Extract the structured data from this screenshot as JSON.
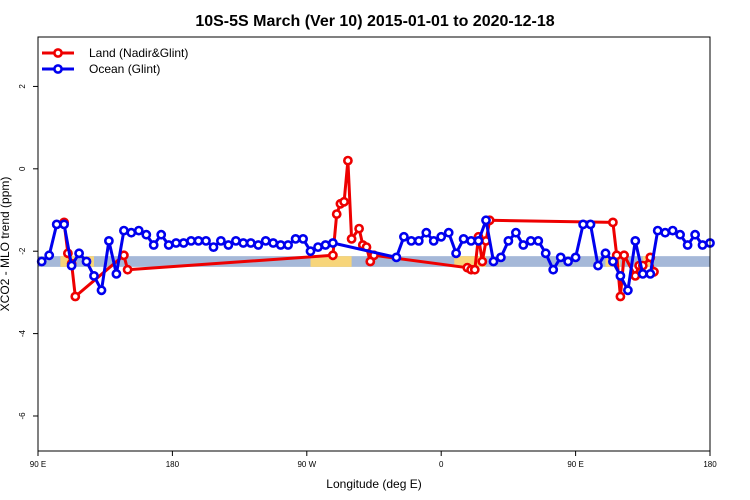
{
  "chart_data": {
    "type": "line",
    "title": "10S-5S March (Ver 10)   2015-01-01 to 2020-12-18",
    "xlabel": "Longitude (deg E)",
    "ylabel": "XCO2 - MLO trend (ppm)",
    "xlim": [
      90,
      450
    ],
    "ylim": [
      -6.85,
      3.2
    ],
    "x_ticks": [
      {
        "value": 90,
        "label": "90 E"
      },
      {
        "value": 162,
        "label": "180"
      },
      {
        "value": 234,
        "label": "90 W"
      },
      {
        "value": 306,
        "label": "0"
      },
      {
        "value": 378,
        "label": "90 E"
      },
      {
        "value": 450,
        "label": "180"
      }
    ],
    "y_ticks": [
      {
        "value": 2,
        "label": "2"
      },
      {
        "value": 0,
        "label": "0"
      },
      {
        "value": -2,
        "label": "-2"
      },
      {
        "value": -4,
        "label": "-4"
      },
      {
        "value": -6,
        "label": "-6"
      }
    ],
    "grid": false,
    "legend": "top-left",
    "band": {
      "y": -2.25,
      "half_width": 0.13,
      "color": "#a5b8d8",
      "land_color": "#f7d57a"
    },
    "land_segments": [
      [
        102,
        110
      ],
      [
        116,
        120
      ],
      [
        236,
        258
      ],
      [
        313,
        330
      ],
      [
        394,
        402
      ],
      [
        414,
        418
      ]
    ],
    "series": [
      {
        "name": "Land (Nadir&Glint)",
        "color": "#ee0000",
        "x": [
          104,
          106,
          108,
          110,
          136,
          138,
          248,
          250,
          252,
          254,
          256,
          258,
          262,
          264,
          266,
          268,
          270,
          320,
          322,
          324,
          326,
          328,
          330,
          332,
          398,
          400,
          402,
          404,
          410,
          412,
          414,
          418,
          420
        ],
        "y": [
          -1.3,
          -2.05,
          -2.3,
          -3.1,
          -2.1,
          -2.45,
          -2.1,
          -1.1,
          -0.85,
          -0.8,
          0.2,
          -1.7,
          -1.45,
          -1.85,
          -1.9,
          -2.25,
          -2.1,
          -2.4,
          -2.45,
          -2.45,
          -1.65,
          -2.25,
          -1.75,
          -1.25,
          -1.3,
          -2.1,
          -3.1,
          -2.1,
          -2.6,
          -2.35,
          -2.35,
          -2.15,
          -2.5
        ]
      },
      {
        "name": "Ocean (Glint)",
        "color": "#0000ee",
        "x": [
          92,
          96,
          100,
          104,
          108,
          112,
          116,
          120,
          124,
          128,
          132,
          136,
          140,
          144,
          148,
          152,
          156,
          160,
          164,
          168,
          172,
          176,
          180,
          184,
          188,
          192,
          196,
          200,
          204,
          208,
          212,
          216,
          220,
          224,
          228,
          232,
          236,
          240,
          244,
          248,
          282,
          286,
          290,
          294,
          298,
          302,
          306,
          310,
          314,
          318,
          322,
          326,
          330,
          334,
          338,
          342,
          346,
          350,
          354,
          358,
          362,
          366,
          370,
          374,
          378,
          382,
          386,
          390,
          394,
          398,
          402,
          406,
          410,
          414,
          418,
          422,
          426,
          430,
          434,
          438,
          442,
          446,
          450
        ],
        "y": [
          -2.25,
          -2.1,
          -1.35,
          -1.35,
          -2.35,
          -2.05,
          -2.25,
          -2.6,
          -2.95,
          -1.75,
          -2.55,
          -1.5,
          -1.55,
          -1.5,
          -1.6,
          -1.85,
          -1.6,
          -1.85,
          -1.8,
          -1.8,
          -1.75,
          -1.75,
          -1.75,
          -1.9,
          -1.75,
          -1.85,
          -1.75,
          -1.8,
          -1.8,
          -1.85,
          -1.75,
          -1.8,
          -1.85,
          -1.85,
          -1.7,
          -1.7,
          -2.0,
          -1.9,
          -1.85,
          -1.8,
          -2.15,
          -1.65,
          -1.75,
          -1.75,
          -1.55,
          -1.75,
          -1.65,
          -1.55,
          -2.05,
          -1.7,
          -1.75,
          -1.75,
          -1.25,
          -2.25,
          -2.15,
          -1.75,
          -1.55,
          -1.85,
          -1.75,
          -1.75,
          -2.05,
          -2.45,
          -2.15,
          -2.25,
          -2.15,
          -1.35,
          -1.35,
          -2.35,
          -2.05,
          -2.25,
          -2.6,
          -2.95,
          -1.75,
          -2.55,
          -2.55,
          -1.5,
          -1.55,
          -1.5,
          -1.6,
          -1.85,
          -1.6,
          -1.85,
          -1.8
        ]
      }
    ]
  }
}
